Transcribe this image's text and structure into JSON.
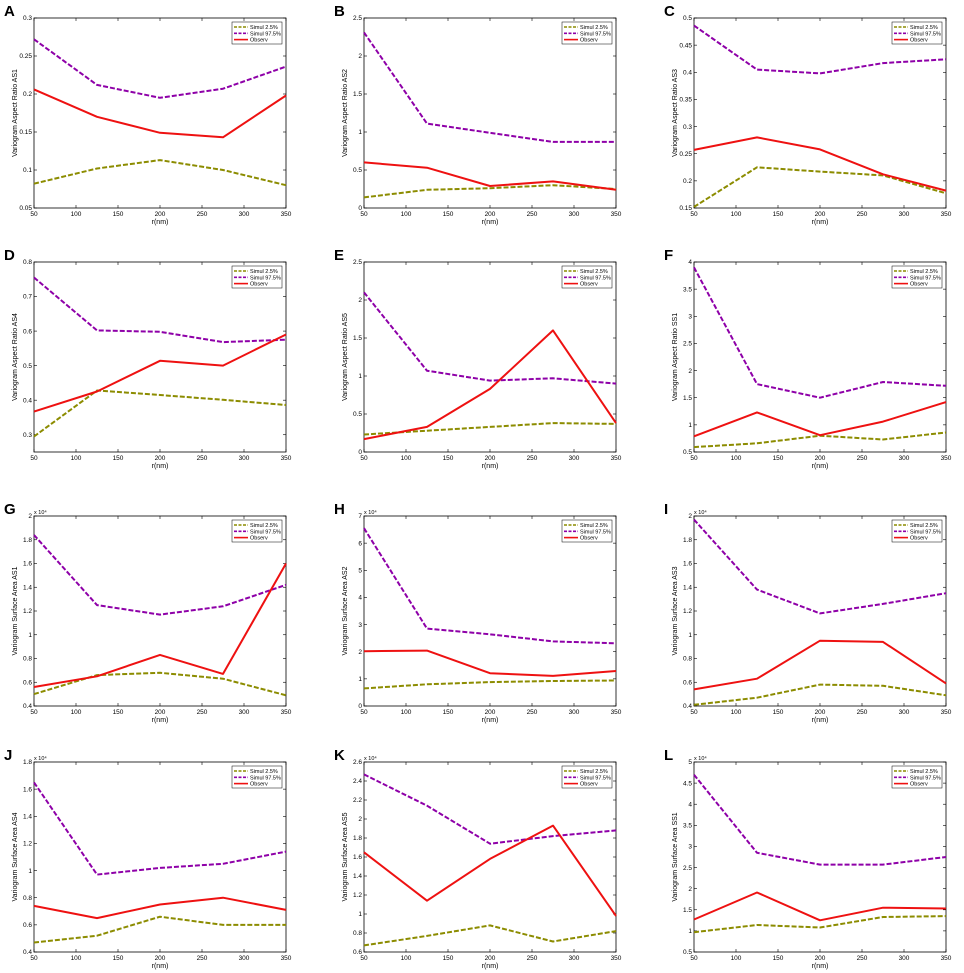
{
  "legend": [
    "Simul 2.5%",
    "Simul 97.5%",
    "Observ"
  ],
  "colors": {
    "low": "#8c8c00",
    "high": "#8e00a8",
    "obs": "#ee1111"
  },
  "chart_data": [
    {
      "type": "line",
      "panel": "A",
      "ylabel": "Variogram Aspect Ratio AS1",
      "xlabel": "r(nm)",
      "exponent": "",
      "x": [
        50,
        125,
        200,
        275,
        350
      ],
      "xlim": [
        50,
        350
      ],
      "xticks": [
        50,
        100,
        150,
        200,
        250,
        300,
        350
      ],
      "ylim": [
        0.05,
        0.3
      ],
      "yticks": [
        "0.05",
        "0.1",
        "0.15",
        "0.2",
        "0.25",
        "0.3"
      ],
      "series": [
        {
          "name": "Simul 2.5%",
          "values": [
            0.082,
            0.102,
            0.113,
            0.1,
            0.08
          ]
        },
        {
          "name": "Simul 97.5%",
          "values": [
            0.272,
            0.212,
            0.195,
            0.207,
            0.236
          ]
        },
        {
          "name": "Observ",
          "values": [
            0.206,
            0.17,
            0.149,
            0.143,
            0.198
          ]
        }
      ]
    },
    {
      "type": "line",
      "panel": "B",
      "ylabel": "Variogram Aspect Ratio AS2",
      "xlabel": "r(nm)",
      "exponent": "",
      "x": [
        50,
        125,
        200,
        275,
        350
      ],
      "xlim": [
        50,
        350
      ],
      "xticks": [
        50,
        100,
        150,
        200,
        250,
        300,
        350
      ],
      "ylim": [
        0,
        2.5
      ],
      "yticks": [
        "0",
        "0.5",
        "1",
        "1.5",
        "2",
        "2.5"
      ],
      "series": [
        {
          "name": "Simul 2.5%",
          "values": [
            0.14,
            0.24,
            0.26,
            0.3,
            0.25
          ]
        },
        {
          "name": "Simul 97.5%",
          "values": [
            2.31,
            1.11,
            0.99,
            0.87,
            0.87
          ]
        },
        {
          "name": "Observ",
          "values": [
            0.6,
            0.53,
            0.29,
            0.35,
            0.24
          ]
        }
      ]
    },
    {
      "type": "line",
      "panel": "C",
      "ylabel": "Variogram Aspect Ratio AS3",
      "xlabel": "r(nm)",
      "exponent": "",
      "x": [
        50,
        125,
        200,
        275,
        350
      ],
      "xlim": [
        50,
        350
      ],
      "xticks": [
        50,
        100,
        150,
        200,
        250,
        300,
        350
      ],
      "ylim": [
        0.15,
        0.5
      ],
      "yticks": [
        "0.15",
        "0.2",
        "0.25",
        "0.3",
        "0.35",
        "0.4",
        "0.45",
        "0.5"
      ],
      "series": [
        {
          "name": "Simul 2.5%",
          "values": [
            0.152,
            0.225,
            0.217,
            0.21,
            0.177
          ]
        },
        {
          "name": "Simul 97.5%",
          "values": [
            0.486,
            0.405,
            0.398,
            0.417,
            0.424
          ]
        },
        {
          "name": "Observ",
          "values": [
            0.257,
            0.28,
            0.258,
            0.212,
            0.182
          ]
        }
      ]
    },
    {
      "type": "line",
      "panel": "D",
      "ylabel": "Variogram Aspect Ratio AS4",
      "xlabel": "r(nm)",
      "exponent": "",
      "x": [
        50,
        125,
        200,
        275,
        350
      ],
      "xlim": [
        50,
        350
      ],
      "xticks": [
        50,
        100,
        150,
        200,
        250,
        300,
        350
      ],
      "ylim": [
        0.25,
        0.8
      ],
      "yticks": [
        "0.3",
        "0.4",
        "0.5",
        "0.6",
        "0.7",
        "0.8"
      ],
      "series": [
        {
          "name": "Simul 2.5%",
          "values": [
            0.295,
            0.428,
            0.415,
            0.401,
            0.386
          ]
        },
        {
          "name": "Simul 97.5%",
          "values": [
            0.755,
            0.602,
            0.598,
            0.568,
            0.575
          ]
        },
        {
          "name": "Observ",
          "values": [
            0.367,
            0.425,
            0.514,
            0.5,
            0.59
          ]
        }
      ]
    },
    {
      "type": "line",
      "panel": "E",
      "ylabel": "Variogram Aspect Ratio AS5",
      "xlabel": "r(nm)",
      "exponent": "",
      "x": [
        50,
        125,
        200,
        275,
        350
      ],
      "xlim": [
        50,
        350
      ],
      "xticks": [
        50,
        100,
        150,
        200,
        250,
        300,
        350
      ],
      "ylim": [
        0,
        2.5
      ],
      "yticks": [
        "0",
        "0.5",
        "1",
        "1.5",
        "2",
        "2.5"
      ],
      "series": [
        {
          "name": "Simul 2.5%",
          "values": [
            0.23,
            0.28,
            0.33,
            0.38,
            0.37
          ]
        },
        {
          "name": "Simul 97.5%",
          "values": [
            2.1,
            1.07,
            0.94,
            0.97,
            0.9
          ]
        },
        {
          "name": "Observ",
          "values": [
            0.17,
            0.33,
            0.83,
            1.6,
            0.38
          ]
        }
      ]
    },
    {
      "type": "line",
      "panel": "F",
      "ylabel": "Variogram Aspect Ratio SS1",
      "xlabel": "r(nm)",
      "exponent": "",
      "x": [
        50,
        125,
        200,
        275,
        350
      ],
      "xlim": [
        50,
        350
      ],
      "xticks": [
        50,
        100,
        150,
        200,
        250,
        300,
        350
      ],
      "ylim": [
        0.5,
        4
      ],
      "yticks": [
        "0.5",
        "1",
        "1.5",
        "2",
        "2.5",
        "3",
        "3.5",
        "4"
      ],
      "series": [
        {
          "name": "Simul 2.5%",
          "values": [
            0.59,
            0.66,
            0.8,
            0.73,
            0.86
          ]
        },
        {
          "name": "Simul 97.5%",
          "values": [
            3.9,
            1.75,
            1.5,
            1.79,
            1.72
          ]
        },
        {
          "name": "Observ",
          "values": [
            0.79,
            1.23,
            0.81,
            1.06,
            1.42
          ]
        }
      ]
    },
    {
      "type": "line",
      "panel": "G",
      "ylabel": "Variogram Surface Area AS1",
      "xlabel": "r(nm)",
      "exponent": "x 10⁴",
      "x": [
        50,
        125,
        200,
        275,
        350
      ],
      "xlim": [
        50,
        350
      ],
      "xticks": [
        50,
        100,
        150,
        200,
        250,
        300,
        350
      ],
      "ylim": [
        0.4,
        2
      ],
      "yticks": [
        "0.4",
        "0.6",
        "0.8",
        "1",
        "1.2",
        "1.4",
        "1.6",
        "1.8",
        "2"
      ],
      "series": [
        {
          "name": "Simul 2.5%",
          "values": [
            0.5,
            0.66,
            0.68,
            0.63,
            0.49
          ]
        },
        {
          "name": "Simul 97.5%",
          "values": [
            1.84,
            1.25,
            1.17,
            1.24,
            1.42
          ]
        },
        {
          "name": "Observ",
          "values": [
            0.56,
            0.65,
            0.83,
            0.67,
            1.6
          ]
        }
      ]
    },
    {
      "type": "line",
      "panel": "H",
      "ylabel": "Variogram Surface Area AS2",
      "xlabel": "r(nm)",
      "exponent": "x 10⁴",
      "x": [
        50,
        125,
        200,
        275,
        350
      ],
      "xlim": [
        50,
        350
      ],
      "xticks": [
        50,
        100,
        150,
        200,
        250,
        300,
        350
      ],
      "ylim": [
        0,
        7
      ],
      "yticks": [
        "0",
        "1",
        "2",
        "3",
        "4",
        "5",
        "6",
        "7"
      ],
      "series": [
        {
          "name": "Simul 2.5%",
          "values": [
            0.65,
            0.8,
            0.88,
            0.92,
            0.94
          ]
        },
        {
          "name": "Simul 97.5%",
          "values": [
            6.55,
            2.85,
            2.64,
            2.38,
            2.31
          ]
        },
        {
          "name": "Observ",
          "values": [
            2.02,
            2.04,
            1.21,
            1.11,
            1.29
          ]
        }
      ]
    },
    {
      "type": "line",
      "panel": "I",
      "ylabel": "Variogram Surface Area AS3",
      "xlabel": "r(nm)",
      "exponent": "x 10⁴",
      "x": [
        50,
        125,
        200,
        275,
        350
      ],
      "xlim": [
        50,
        350
      ],
      "xticks": [
        50,
        100,
        150,
        200,
        250,
        300,
        350
      ],
      "ylim": [
        0.4,
        2
      ],
      "yticks": [
        "0.4",
        "0.6",
        "0.8",
        "1",
        "1.2",
        "1.4",
        "1.6",
        "1.8",
        "2"
      ],
      "series": [
        {
          "name": "Simul 2.5%",
          "values": [
            0.41,
            0.47,
            0.58,
            0.57,
            0.49
          ]
        },
        {
          "name": "Simul 97.5%",
          "values": [
            1.97,
            1.38,
            1.18,
            1.26,
            1.35
          ]
        },
        {
          "name": "Observ",
          "values": [
            0.54,
            0.63,
            0.95,
            0.94,
            0.59
          ]
        }
      ]
    },
    {
      "type": "line",
      "panel": "J",
      "ylabel": "Variogram Surface Area AS4",
      "xlabel": "r(nm)",
      "exponent": "x 10⁴",
      "x": [
        50,
        125,
        200,
        275,
        350
      ],
      "xlim": [
        50,
        350
      ],
      "xticks": [
        50,
        100,
        150,
        200,
        250,
        300,
        350
      ],
      "ylim": [
        0.4,
        1.8
      ],
      "yticks": [
        "0.4",
        "0.6",
        "0.8",
        "1",
        "1.2",
        "1.4",
        "1.6",
        "1.8"
      ],
      "series": [
        {
          "name": "Simul 2.5%",
          "values": [
            0.47,
            0.52,
            0.66,
            0.6,
            0.6
          ]
        },
        {
          "name": "Simul 97.5%",
          "values": [
            1.65,
            0.97,
            1.02,
            1.05,
            1.14
          ]
        },
        {
          "name": "Observ",
          "values": [
            0.74,
            0.65,
            0.75,
            0.8,
            0.71
          ]
        }
      ]
    },
    {
      "type": "line",
      "panel": "K",
      "ylabel": "Variogram Surface Area AS5",
      "xlabel": "r(nm)",
      "exponent": "x 10⁴",
      "x": [
        50,
        125,
        200,
        275,
        350
      ],
      "xlim": [
        50,
        350
      ],
      "xticks": [
        50,
        100,
        150,
        200,
        250,
        300,
        350
      ],
      "ylim": [
        0.6,
        2.6
      ],
      "yticks": [
        "0.6",
        "0.8",
        "1",
        "1.2",
        "1.4",
        "1.6",
        "1.8",
        "2",
        "2.2",
        "2.4",
        "2.6"
      ],
      "series": [
        {
          "name": "Simul 2.5%",
          "values": [
            0.67,
            0.77,
            0.88,
            0.71,
            0.82
          ]
        },
        {
          "name": "Simul 97.5%",
          "values": [
            2.47,
            2.14,
            1.74,
            1.82,
            1.88
          ]
        },
        {
          "name": "Observ",
          "values": [
            1.65,
            1.14,
            1.58,
            1.93,
            0.98
          ]
        }
      ]
    },
    {
      "type": "line",
      "panel": "L",
      "ylabel": "Variogram Surface Area SS1",
      "xlabel": "r(nm)",
      "exponent": "x 10⁴",
      "x": [
        50,
        125,
        200,
        275,
        350
      ],
      "xlim": [
        50,
        350
      ],
      "xticks": [
        50,
        100,
        150,
        200,
        250,
        300,
        350
      ],
      "ylim": [
        0.5,
        5
      ],
      "yticks": [
        "0.5",
        "1",
        "1.5",
        "2",
        "2.5",
        "3",
        "3.5",
        "4",
        "4.5",
        "5"
      ],
      "series": [
        {
          "name": "Simul 2.5%",
          "values": [
            0.97,
            1.14,
            1.08,
            1.33,
            1.35
          ]
        },
        {
          "name": "Simul 97.5%",
          "values": [
            4.7,
            2.85,
            2.57,
            2.57,
            2.75
          ]
        },
        {
          "name": "Observ",
          "values": [
            1.27,
            1.91,
            1.25,
            1.55,
            1.53
          ]
        }
      ]
    }
  ]
}
